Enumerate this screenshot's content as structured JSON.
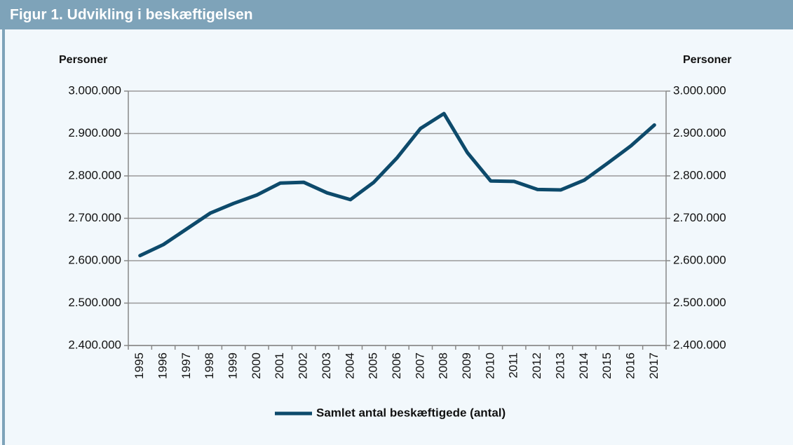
{
  "chart_data": {
    "type": "line",
    "title": "Figur 1. Udvikling i beskæftigelsen",
    "y_label": "Personer",
    "y2_label": "Personer",
    "categories": [
      "1995",
      "1996",
      "1997",
      "1998",
      "1999",
      "2000",
      "2001",
      "2002",
      "2003",
      "2004",
      "2005",
      "2006",
      "2007",
      "2008",
      "2009",
      "2010",
      "2011",
      "2012",
      "2013",
      "2014",
      "2015",
      "2016",
      "2017"
    ],
    "series": [
      {
        "name": "Samlet antal beskæftigede (antal)",
        "color": "#0d4a6b",
        "values": [
          2612000,
          2638000,
          2675000,
          2712000,
          2735000,
          2755000,
          2783000,
          2785000,
          2760000,
          2744000,
          2785000,
          2843000,
          2912000,
          2947000,
          2855000,
          2788000,
          2787000,
          2768000,
          2767000,
          2790000,
          2830000,
          2871000,
          2920000
        ]
      }
    ],
    "ylim": [
      2400000,
      3000000
    ],
    "yticks": [
      {
        "value": 2400000,
        "label": "2.400.000"
      },
      {
        "value": 2500000,
        "label": "2.500.000"
      },
      {
        "value": 2600000,
        "label": "2.600.000"
      },
      {
        "value": 2700000,
        "label": "2.700.000"
      },
      {
        "value": 2800000,
        "label": "2.800.000"
      },
      {
        "value": 2900000,
        "label": "2.900.000"
      },
      {
        "value": 3000000,
        "label": "3.000.000"
      }
    ],
    "y2lim": [
      2400000,
      3000000
    ],
    "y2ticks": [
      {
        "value": 2400000,
        "label": "2.400.000"
      },
      {
        "value": 2500000,
        "label": "2.500.000"
      },
      {
        "value": 2600000,
        "label": "2.600.000"
      },
      {
        "value": 2700000,
        "label": "2.700.000"
      },
      {
        "value": 2800000,
        "label": "2.800.000"
      },
      {
        "value": 2900000,
        "label": "2.900.000"
      },
      {
        "value": 3000000,
        "label": "3.000.000"
      }
    ],
    "grid": true,
    "legend": "bottom"
  }
}
